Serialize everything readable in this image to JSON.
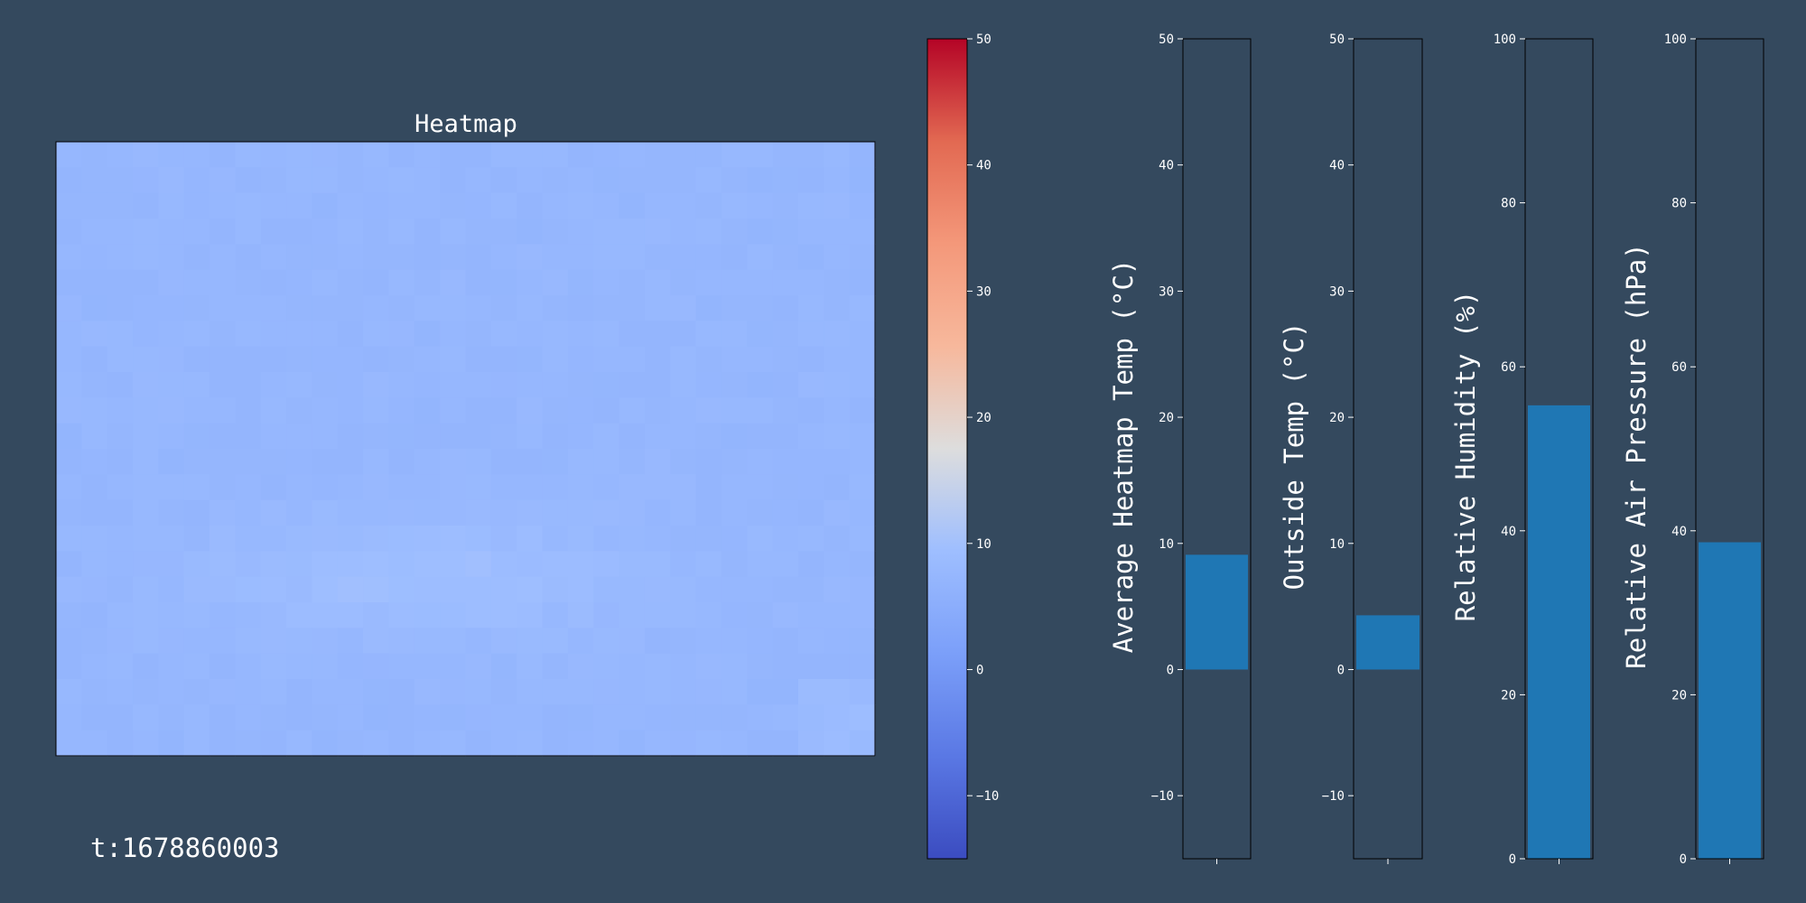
{
  "chart_data": [
    {
      "type": "heatmap",
      "title": "Heatmap",
      "vmin": -15,
      "vmax": 50,
      "colormap": "coolwarm",
      "rows": 24,
      "cols": 32,
      "approx_value_range": [
        5,
        11
      ],
      "colorbar": {
        "ticks": [
          -10,
          0,
          10,
          20,
          30,
          40,
          50
        ],
        "ylim": [
          -15,
          50
        ]
      }
    },
    {
      "type": "bar",
      "ylabel": "Average Heatmap Temp (°C)",
      "values": [
        9.1
      ],
      "ylim": [
        -15,
        50
      ],
      "yticks": [
        -10,
        0,
        10,
        20,
        30,
        40,
        50
      ],
      "color": "#1f77b4"
    },
    {
      "type": "bar",
      "ylabel": "Outside Temp (°C)",
      "values": [
        4.3
      ],
      "ylim": [
        -15,
        50
      ],
      "yticks": [
        -10,
        0,
        10,
        20,
        30,
        40,
        50
      ],
      "color": "#1f77b4"
    },
    {
      "type": "bar",
      "ylabel": "Relative Humidity (%)",
      "values": [
        55.3
      ],
      "ylim": [
        0,
        100
      ],
      "yticks": [
        0,
        20,
        40,
        60,
        80,
        100
      ],
      "color": "#1f77b4"
    },
    {
      "type": "bar",
      "ylabel": "Relative Air Pressure (hPa)",
      "values": [
        38.6
      ],
      "ylim": [
        0,
        100
      ],
      "yticks": [
        0,
        20,
        40,
        60,
        80,
        100
      ],
      "color": "#1f77b4"
    }
  ],
  "timestamp": "t:1678860003",
  "colors": {
    "background": "#34495e",
    "bar": "#1f77b4"
  }
}
